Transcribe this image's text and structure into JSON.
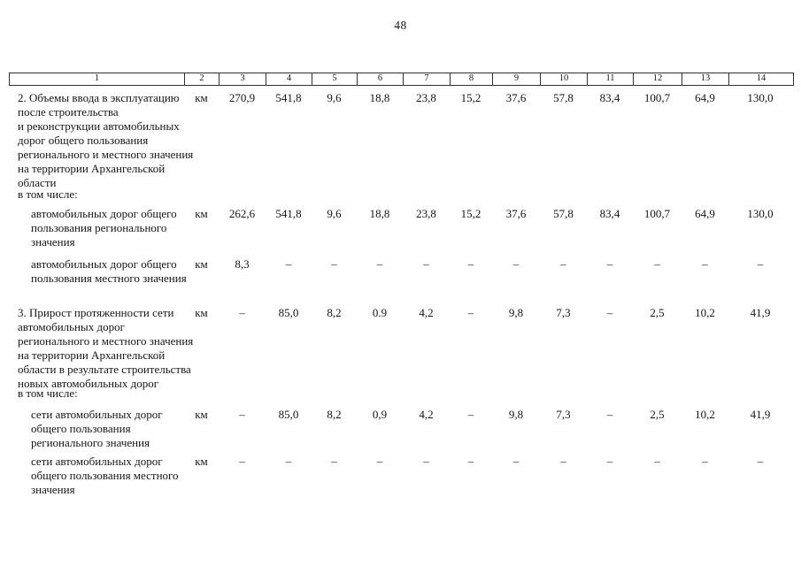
{
  "page": {
    "number": "48"
  },
  "table": {
    "header_columns": [
      "1",
      "2",
      "3",
      "4",
      "5",
      "6",
      "7",
      "8",
      "9",
      "10",
      "11",
      "12",
      "13",
      "14"
    ],
    "rows": [
      {
        "kind": "data",
        "indent": false,
        "label": "2. Объемы ввода в эксплуатацию\nпосле строительства\nи реконструкции автомобильных\nдорог общего пользования\nрегионального и местного значения\nна территории Архангельской\nобласти",
        "values": [
          "км",
          "270,9",
          "541,8",
          "9,6",
          "18,8",
          "23,8",
          "15,2",
          "37,6",
          "57,8",
          "83,4",
          "100,7",
          "64,9",
          "130,0"
        ]
      },
      {
        "kind": "note",
        "indent": false,
        "label": "в том числе:"
      },
      {
        "kind": "data",
        "indent": true,
        "label": "автомобильных дорог общего\nпользования регионального\nзначения",
        "values": [
          "км",
          "262,6",
          "541,8",
          "9,6",
          "18,8",
          "23,8",
          "15,2",
          "37,6",
          "57,8",
          "83,4",
          "100,7",
          "64,9",
          "130,0"
        ]
      },
      {
        "kind": "data",
        "indent": true,
        "label": "автомобильных дорог общего\nпользования местного значения",
        "values": [
          "км",
          "8,3",
          "–",
          "–",
          "–",
          "–",
          "–",
          "–",
          "–",
          "–",
          "–",
          "–",
          "–"
        ]
      },
      {
        "kind": "data",
        "indent": false,
        "label": "3. Прирост протяженности сети\nавтомобильных дорог\nрегионального и местного значения\nна территории Архангельской\nобласти в результате строительства\nновых автомобильных дорог",
        "values": [
          "км",
          "–",
          "85,0",
          "8,2",
          "0.9",
          "4,2",
          "–",
          "9,8",
          "7,3",
          "–",
          "2,5",
          "10,2",
          "41,9"
        ]
      },
      {
        "kind": "note",
        "indent": false,
        "label": "в том числе:"
      },
      {
        "kind": "data",
        "indent": true,
        "label": "сети автомобильных дорог\nобщего пользования\nрегионального значения",
        "values": [
          "км",
          "–",
          "85,0",
          "8,2",
          "0,9",
          "4,2",
          "–",
          "9,8",
          "7,3",
          "–",
          "2,5",
          "10,2",
          "41,9"
        ]
      },
      {
        "kind": "data",
        "indent": true,
        "label": "сети автомобильных дорог\nобщего пользования местного\nзначения",
        "values": [
          "км",
          "–",
          "–",
          "–",
          "–",
          "–",
          "–",
          "–",
          "–",
          "–",
          "–",
          "–",
          "–"
        ]
      }
    ]
  }
}
